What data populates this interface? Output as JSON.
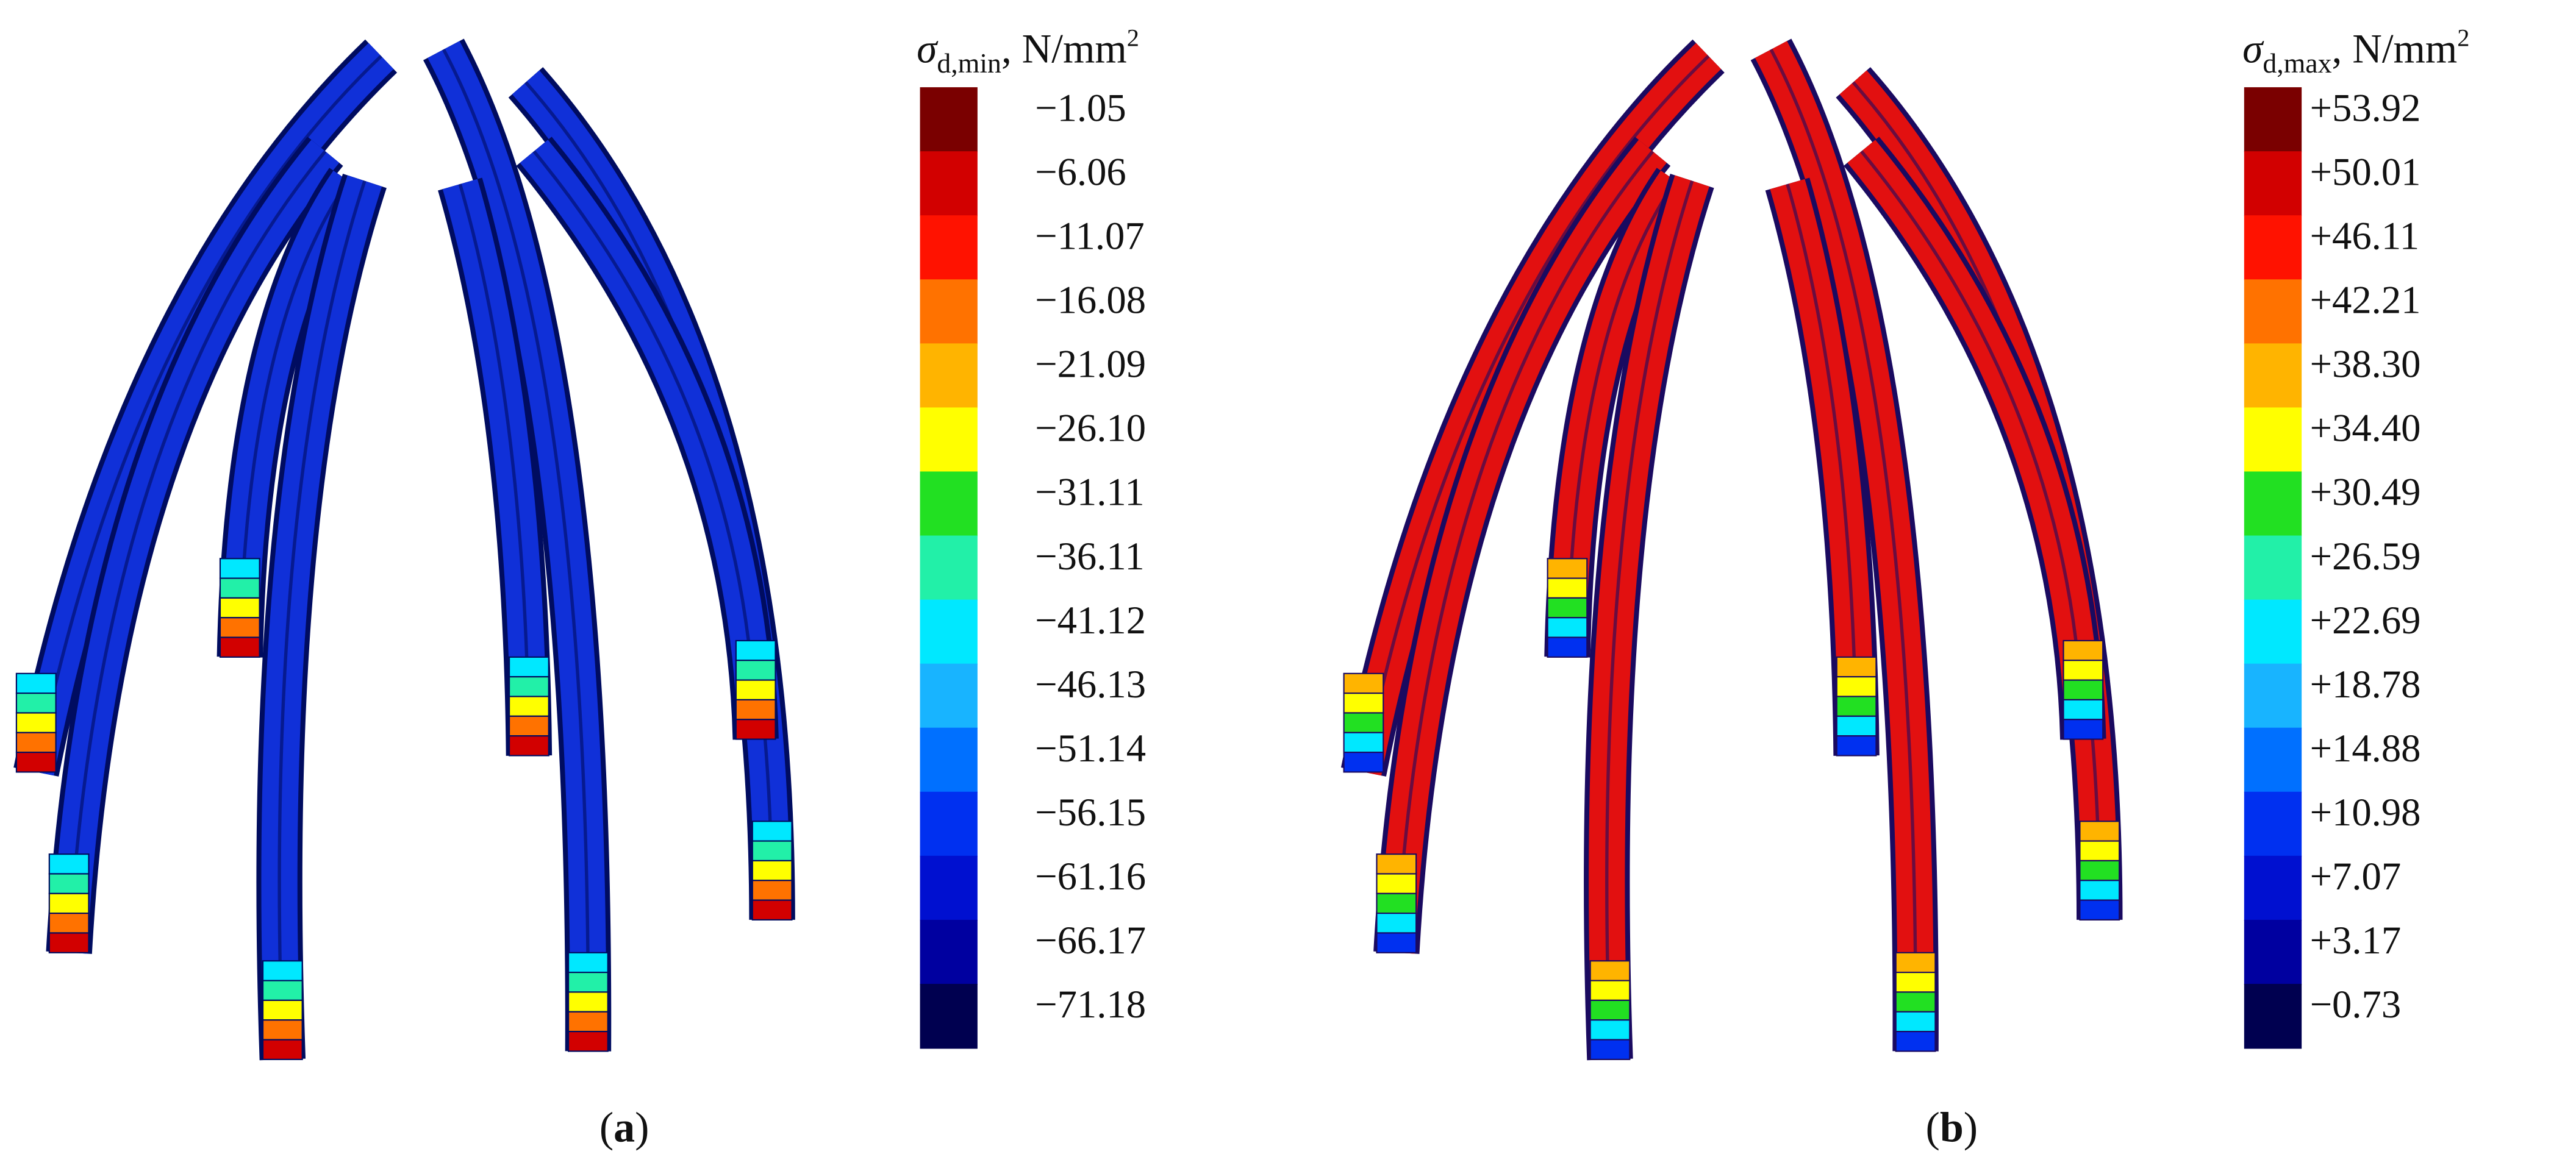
{
  "panels": [
    {
      "label": {
        "open": "(",
        "letter": "a",
        "close": ")"
      },
      "legend": {
        "symbol": "σ",
        "subscript": "d,min",
        "unit": ", N/mm",
        "unit_superscript": "2",
        "labels": [
          "−1.05",
          "−6.06",
          "−11.07",
          "−16.08",
          "−21.09",
          "−26.10",
          "−31.11",
          "−36.11",
          "−41.12",
          "−46.13",
          "−51.14",
          "−56.15",
          "−61.16",
          "−66.17",
          "−71.18"
        ]
      }
    },
    {
      "label": {
        "open": "(",
        "letter": "b",
        "close": ")"
      },
      "legend": {
        "symbol": "σ",
        "subscript": "d,max",
        "unit": ", N/mm",
        "unit_superscript": "2",
        "labels": [
          "+53.92",
          "+50.01",
          "+46.11",
          "+42.21",
          "+38.30",
          "+34.40",
          "+30.49",
          "+26.59",
          "+22.69",
          "+18.78",
          "+14.88",
          "+10.98",
          "+7.07",
          "+3.17",
          "−0.73"
        ]
      }
    }
  ]
}
